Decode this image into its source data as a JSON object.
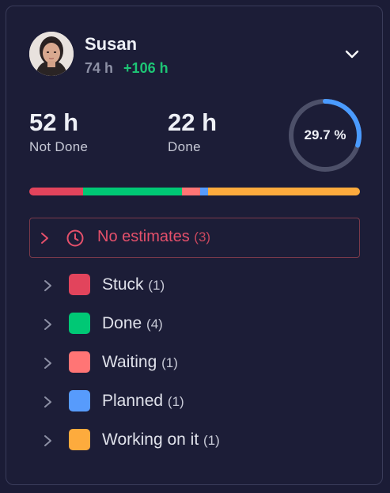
{
  "user": {
    "name": "Susan",
    "total_hours": "74 h",
    "extra_hours": "+106 h"
  },
  "stats": {
    "not_done_value": "52 h",
    "not_done_label": "Not Done",
    "done_value": "22 h",
    "done_label": "Done",
    "percent_label": "29.7 %",
    "percent_value": 29.7
  },
  "progress_segments": [
    {
      "status": "Stuck",
      "fraction": 0.163,
      "color": "#e2445c"
    },
    {
      "status": "Done",
      "fraction": 0.298,
      "color": "#00c875"
    },
    {
      "status": "Waiting",
      "fraction": 0.055,
      "color": "#ff7575"
    },
    {
      "status": "Planned",
      "fraction": 0.025,
      "color": "#579bfc"
    },
    {
      "status": "Working on it",
      "fraction": 0.459,
      "color": "#fdab3d"
    }
  ],
  "no_estimates": {
    "label": "No estimates",
    "count": "(3)"
  },
  "statuses": [
    {
      "label": "Stuck",
      "count": "(1)",
      "color": "#e2445c"
    },
    {
      "label": "Done",
      "count": "(4)",
      "color": "#00c875"
    },
    {
      "label": "Waiting",
      "count": "(1)",
      "color": "#ff7575"
    },
    {
      "label": "Planned",
      "count": "(1)",
      "color": "#579bfc"
    },
    {
      "label": "Working on it",
      "count": "(1)",
      "color": "#fdab3d"
    }
  ],
  "icons": {
    "expand": "chevron-down-icon",
    "row_expand": "chevron-right-icon",
    "no_estimates": "clock-icon"
  }
}
